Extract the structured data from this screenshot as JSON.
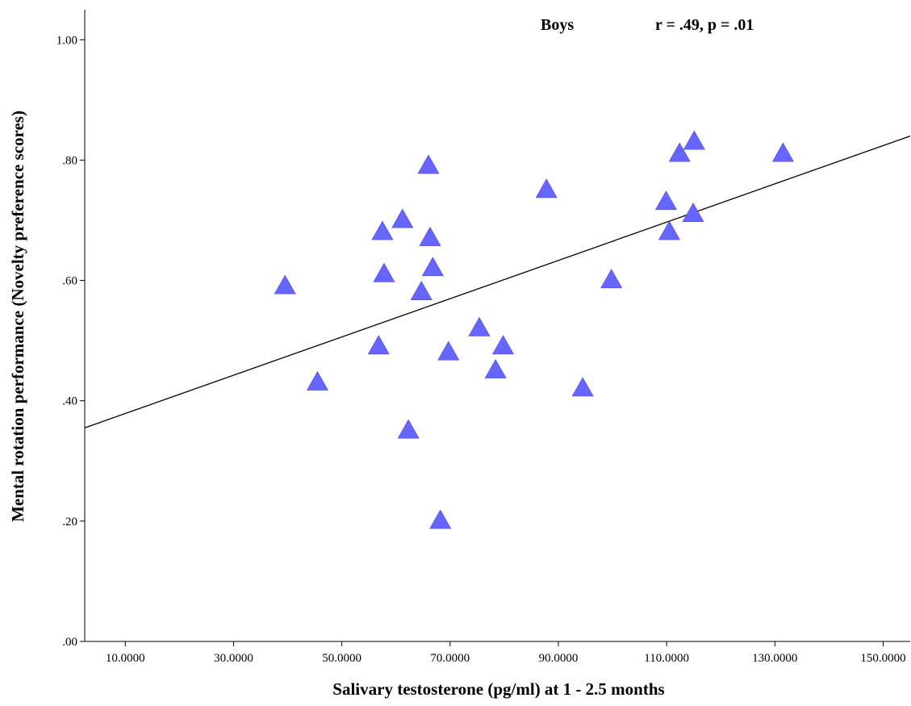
{
  "chart_data": {
    "type": "scatter",
    "title": "",
    "xlabel": "Salivary testosterone (pg/ml) at 1 - 2.5 months",
    "ylabel": "Mental rotation performance (Novelty preference scores)",
    "xlim": [
      2.5,
      155
    ],
    "ylim": [
      0.0,
      1.05
    ],
    "x_ticks": [
      10,
      30,
      50,
      70,
      90,
      110,
      130,
      150
    ],
    "x_tick_labels": [
      "10.0000",
      "30.0000",
      "50.0000",
      "70.0000",
      "90.0000",
      "110.0000",
      "130.0000",
      "150.0000"
    ],
    "y_ticks": [
      0.0,
      0.2,
      0.4,
      0.6,
      0.8,
      1.0
    ],
    "y_tick_labels": [
      ".00",
      ".20",
      ".40",
      ".60",
      ".80",
      "1.00"
    ],
    "marker": "triangle",
    "marker_color": "#6666ff",
    "line_color": "#000000",
    "fit_line": {
      "x": [
        2.5,
        155
      ],
      "y": [
        0.355,
        0.84
      ]
    },
    "annotations": {
      "group": "Boys",
      "stats": "r = .49, p = .01"
    },
    "series": [
      {
        "x": [
          39.5,
          45.5,
          56.8,
          57.5,
          57.8,
          61.2,
          62.3,
          64.7,
          66.0,
          66.3,
          66.8,
          68.2,
          69.7,
          75.4,
          78.4,
          79.8,
          87.8,
          94.5,
          99.8,
          109.9,
          110.5,
          112.4,
          114.9,
          115.1,
          131.5
        ],
        "y": [
          0.59,
          0.43,
          0.49,
          0.68,
          0.61,
          0.7,
          0.35,
          0.58,
          0.79,
          0.67,
          0.62,
          0.2,
          0.48,
          0.52,
          0.45,
          0.49,
          0.75,
          0.42,
          0.6,
          0.73,
          0.68,
          0.81,
          0.71,
          0.83,
          0.81
        ]
      }
    ]
  }
}
